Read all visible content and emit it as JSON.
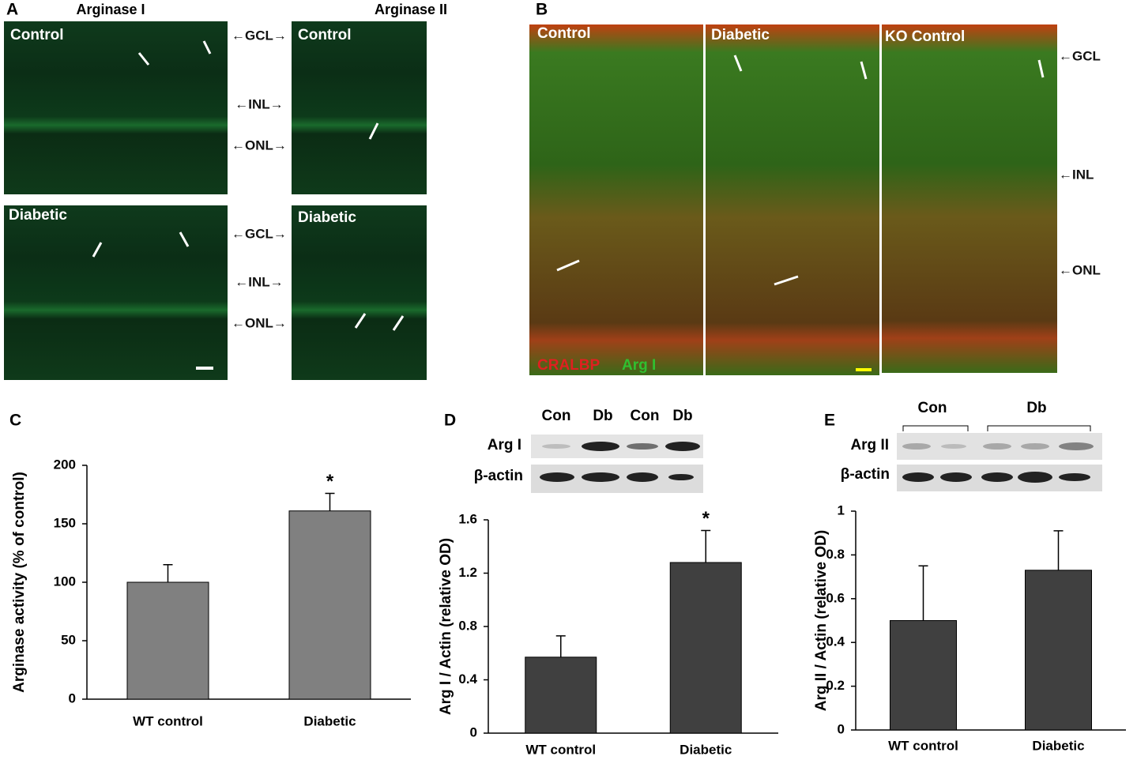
{
  "panel_A": {
    "letter": "A",
    "titles": [
      "Arginase I",
      "Arginase II"
    ],
    "image_labels": [
      "Control",
      "Control",
      "Diabetic",
      "Diabetic"
    ],
    "layer_labels": [
      "←GCL→",
      "←INL→",
      "←ONL→",
      "←GCL→",
      "←INL→",
      "←ONL→"
    ]
  },
  "panel_B": {
    "letter": "B",
    "image_labels": [
      "Control",
      "Diabetic",
      "KO Control"
    ],
    "layer_labels": [
      "←GCL",
      "←INL",
      "←ONL"
    ],
    "stain_labels": [
      "CRALBP",
      "Arg I"
    ]
  },
  "panel_C": {
    "letter": "C"
  },
  "panel_D": {
    "letter": "D",
    "lane_labels": [
      "Con",
      "Db",
      "Con",
      "Db"
    ],
    "row_labels": [
      "Arg I",
      "β-actin"
    ]
  },
  "panel_E": {
    "letter": "E",
    "group_labels": [
      "Con",
      "Db"
    ],
    "row_labels": [
      "Arg II",
      "β-actin"
    ]
  },
  "chart_data": [
    {
      "type": "bar",
      "y_label": "Arginase activity (% of control)",
      "categories": [
        "WT control",
        "Diabetic"
      ],
      "values": [
        100,
        161
      ],
      "errors": [
        15,
        15
      ],
      "color": "#808080",
      "ylim": [
        0,
        200
      ],
      "yticks": [
        0,
        50,
        100,
        150,
        200
      ],
      "annotation": "*"
    },
    {
      "type": "bar",
      "y_label": "Arg I / Actin (relative OD)",
      "categories": [
        "WT control",
        "Diabetic"
      ],
      "values": [
        0.57,
        1.28
      ],
      "errors": [
        0.16,
        0.24
      ],
      "color": "#404040",
      "ylim": [
        0,
        1.6
      ],
      "yticks": [
        0,
        0.4,
        0.8,
        1.2,
        1.6
      ],
      "annotation": "*"
    },
    {
      "type": "bar",
      "y_label": "Arg II / Actin (relative OD)",
      "categories": [
        "WT control",
        "Diabetic"
      ],
      "values": [
        0.5,
        0.73
      ],
      "errors": [
        0.25,
        0.18
      ],
      "color": "#404040",
      "ylim": [
        0,
        1
      ],
      "yticks": [
        0,
        0.2,
        0.4,
        0.6,
        0.8,
        1
      ]
    }
  ]
}
